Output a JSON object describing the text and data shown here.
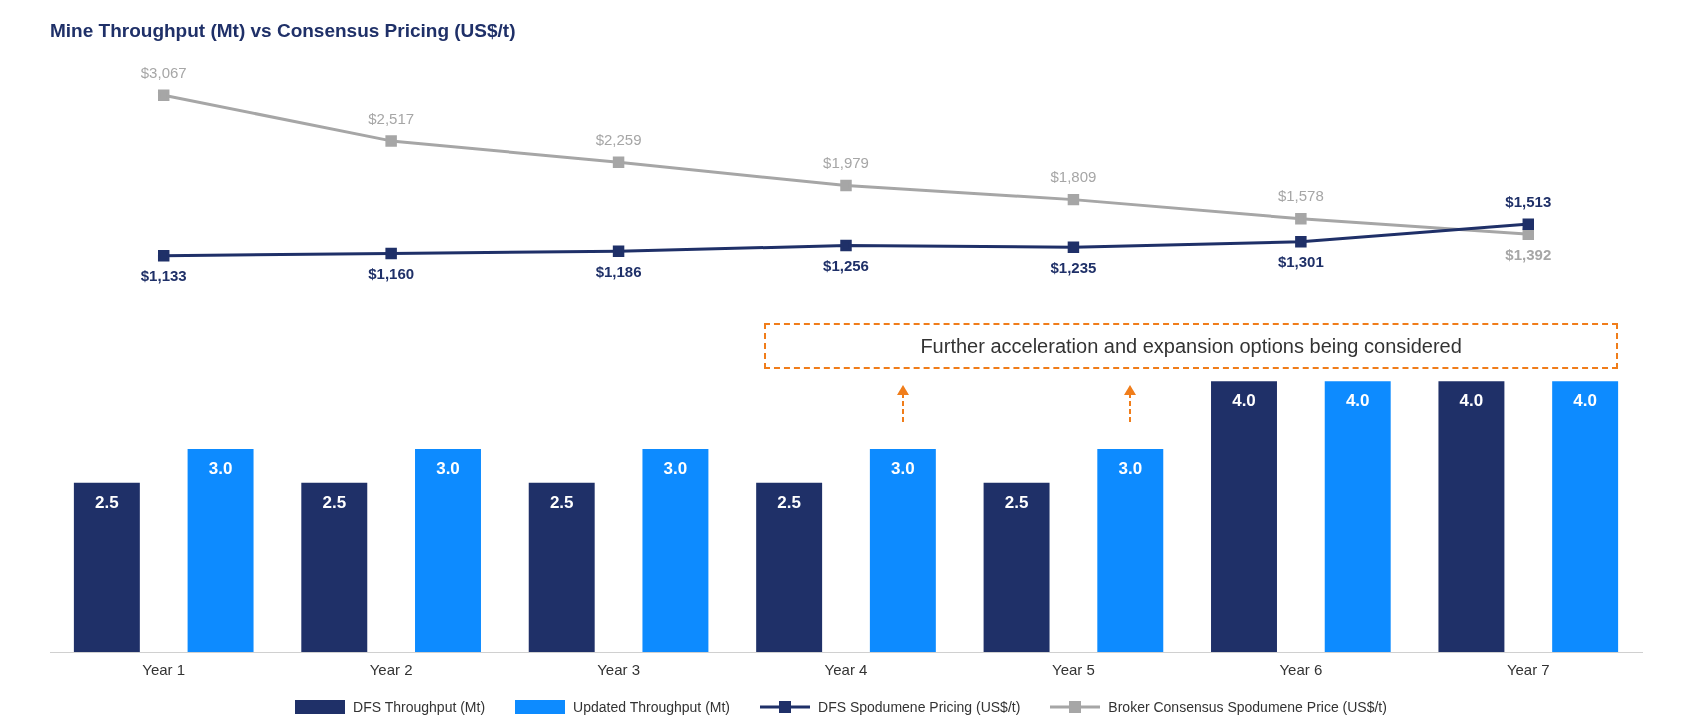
{
  "chart_data": [
    {
      "type": "line",
      "title": "Mine Throughput (Mt) vs Consensus Pricing (US$/t)",
      "categories": [
        null,
        null,
        null,
        null,
        null,
        null,
        null
      ],
      "series": [
        {
          "name": "DFS Spodumene Pricing (US$/t)",
          "color": "#1f3068",
          "values": [
            1133,
            1160,
            1186,
            1256,
            1235,
            1301,
            1513
          ],
          "value_labels": [
            "$1,133",
            "$1,160",
            "$1,186",
            "$1,256",
            "$1,235",
            "$1,301",
            "$1,513"
          ]
        },
        {
          "name": "Broker Consensus Spodumene Price  (US$/t)",
          "color": "#a6a6a6",
          "values": [
            3067,
            2517,
            2259,
            1979,
            1809,
            1578,
            1392
          ],
          "value_labels": [
            "$3,067",
            "$2,517",
            "$2,259",
            "$1,979",
            "$1,809",
            "$1,578",
            "$1,392"
          ]
        }
      ],
      "legend": "bottom",
      "marker": "square",
      "tick_labels": false
    },
    {
      "type": "bar",
      "categories": [
        "Year 1",
        "Year 2",
        "Year 3",
        "Year 4",
        "Year 5",
        "Year 6",
        "Year 7"
      ],
      "series": [
        {
          "name": "DFS Throughput (Mt)",
          "color": "#1f3068",
          "values": [
            2.5,
            2.5,
            2.5,
            2.5,
            2.5,
            4.0,
            4.0
          ],
          "value_labels": [
            "2.5",
            "2.5",
            "2.5",
            "2.5",
            "2.5",
            "4.0",
            "4.0"
          ]
        },
        {
          "name": "Updated Throughput (Mt)",
          "color": "#0d8bff",
          "values": [
            3.0,
            3.0,
            3.0,
            3.0,
            3.0,
            4.0,
            4.0
          ],
          "value_labels": [
            "3.0",
            "3.0",
            "3.0",
            "3.0",
            "3.0",
            "4.0",
            "4.0"
          ]
        }
      ],
      "legend": "bottom",
      "tick_labels": "x",
      "annotations": [
        "Further acceleration and expansion options being considered"
      ]
    }
  ]
}
